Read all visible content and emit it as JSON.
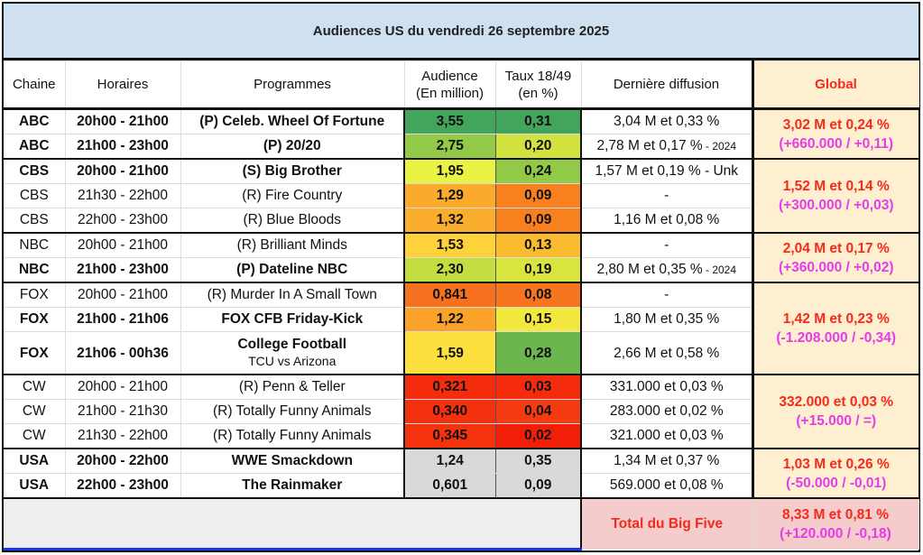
{
  "title": "Audiences US du vendredi 26 septembre 2025",
  "headers": {
    "chaine": "Chaine",
    "horaires": "Horaires",
    "programmes": "Programmes",
    "audience1": "Audience",
    "audience2": "(En million)",
    "taux1": "Taux 18/49",
    "taux2": "(en %)",
    "derniere": "Dernière diffusion",
    "global": "Global"
  },
  "rows": [
    {
      "chaine": "ABC",
      "horaires": "20h00 - 21h00",
      "programme": "(P) Celeb. Wheel Of Fortune",
      "audience": "3,55",
      "taux": "0,31",
      "derniere": "3,04 M et 0,33 %",
      "bold": true,
      "aud_color": "#43a55b",
      "taux_color": "#43a55b"
    },
    {
      "chaine": "ABC",
      "horaires": "21h00 - 23h00",
      "programme": "(P) 20/20",
      "audience": "2,75",
      "taux": "0,20",
      "derniere": "2,78 M et 0,17 %",
      "derniere_suffix": " - 2024",
      "bold": true,
      "aud_color": "#92c947",
      "taux_color": "#d2e33f"
    },
    {
      "chaine": "CBS",
      "horaires": "20h00 - 21h00",
      "programme": "(S) Big Brother",
      "audience": "1,95",
      "taux": "0,24",
      "derniere": "1,57 M et 0,19 % - Unk",
      "bold": true,
      "aud_color": "#eaf244",
      "taux_color": "#92c947"
    },
    {
      "chaine": "CBS",
      "horaires": "21h30 - 22h00",
      "programme": "(R) Fire Country",
      "audience": "1,29",
      "taux": "0,09",
      "derniere": "-",
      "bold": false,
      "aud_color": "#fbab2c",
      "taux_color": "#f8801f"
    },
    {
      "chaine": "CBS",
      "horaires": "22h00 - 23h00",
      "programme": "(R) Blue Bloods",
      "audience": "1,32",
      "taux": "0,09",
      "derniere": "1,16 M et 0,08 %",
      "bold": false,
      "aud_color": "#fbae2d",
      "taux_color": "#f8801f"
    },
    {
      "chaine": "NBC",
      "horaires": "20h00 - 21h00",
      "programme": "(R) Brilliant Minds",
      "audience": "1,53",
      "taux": "0,13",
      "derniere": "-",
      "bold": false,
      "aud_color": "#fdd23a",
      "taux_color": "#fbbb2e"
    },
    {
      "chaine": "NBC",
      "horaires": "21h00 - 23h00",
      "programme": "(P) Dateline NBC",
      "audience": "2,30",
      "taux": "0,19",
      "derniere": "2,80 M et 0,35 %",
      "derniere_suffix": " - 2024",
      "bold": true,
      "aud_color": "#c4de41",
      "taux_color": "#d8e540"
    },
    {
      "chaine": "FOX",
      "horaires": "20h00 - 21h00",
      "programme": "(R) Murder In A Small Town",
      "audience": "0,841",
      "taux": "0,08",
      "derniere": "-",
      "bold": false,
      "aud_color": "#f5701f",
      "taux_color": "#f7751e"
    },
    {
      "chaine": "FOX",
      "horaires": "21h00 - 21h06",
      "programme": "FOX CFB Friday-Kick",
      "audience": "1,22",
      "taux": "0,15",
      "derniere": "1,80 M et 0,35 %",
      "bold": true,
      "aud_color": "#faa22a",
      "taux_color": "#f2e83e"
    },
    {
      "chaine": "FOX",
      "horaires": "21h06 - 00h36",
      "programme": "College Football",
      "programme_sub": "TCU vs Arizona",
      "audience": "1,59",
      "taux": "0,28",
      "derniere": "2,66 M et 0,58 %",
      "bold": true,
      "tall": true,
      "aud_color": "#fde03e",
      "taux_color": "#6cb74d"
    },
    {
      "chaine": "CW",
      "horaires": "20h00 - 21h00",
      "programme": "(R) Penn & Teller",
      "audience": "0,321",
      "taux": "0,03",
      "derniere": "331.000 et 0,03 %",
      "bold": false,
      "aud_color": "#f42c0d",
      "taux_color": "#f42c0d"
    },
    {
      "chaine": "CW",
      "horaires": "21h00 - 21h30",
      "programme": "(R) Totally Funny Animals",
      "audience": "0,340",
      "taux": "0,04",
      "derniere": "283.000 et 0,02 %",
      "bold": false,
      "aud_color": "#f4300e",
      "taux_color": "#f43a10"
    },
    {
      "chaine": "CW",
      "horaires": "21h30 - 22h00",
      "programme": "(R) Totally Funny Animals",
      "audience": "0,345",
      "taux": "0,02",
      "derniere": "321.000 et 0,03 %",
      "bold": false,
      "aud_color": "#f4320e",
      "taux_color": "#f31e08"
    },
    {
      "chaine": "USA",
      "horaires": "20h00 - 22h00",
      "programme": "WWE Smackdown",
      "audience": "1,24",
      "taux": "0,35",
      "derniere": "1,34 M et 0,37 %",
      "bold": true,
      "aud_color": "#d9d9d9",
      "taux_color": "#d9d9d9"
    },
    {
      "chaine": "USA",
      "horaires": "22h00 - 23h00",
      "programme": "The Rainmaker",
      "audience": "0,601",
      "taux": "0,09",
      "derniere": "569.000 et 0,08 %",
      "bold": true,
      "aud_color": "#d9d9d9",
      "taux_color": "#d9d9d9"
    }
  ],
  "groups": [
    {
      "start": 0,
      "span": 2,
      "global": "3,02 M et 0,24 %",
      "diff": "(+660.000 / +0,11)"
    },
    {
      "start": 2,
      "span": 3,
      "global": "1,52 M et 0,14 %",
      "diff": "(+300.000 / +0,03)"
    },
    {
      "start": 5,
      "span": 2,
      "global": "2,04 M et 0,17 %",
      "diff": "(+360.000 / +0,02)"
    },
    {
      "start": 7,
      "span": 3,
      "global": "1,42 M et 0,23 %",
      "diff": "(-1.208.000 / -0,34)"
    },
    {
      "start": 10,
      "span": 3,
      "global": "332.000 et 0,03 %",
      "diff": "(+15.000 / =)"
    },
    {
      "start": 13,
      "span": 2,
      "global": "1,03 M et 0,26 %",
      "diff": "(-50.000 / -0,01)"
    }
  ],
  "footer": {
    "label": "Total du Big Five",
    "global": "8,33 M et 0,81 %",
    "diff": "(+120.000 / -0,18)"
  }
}
